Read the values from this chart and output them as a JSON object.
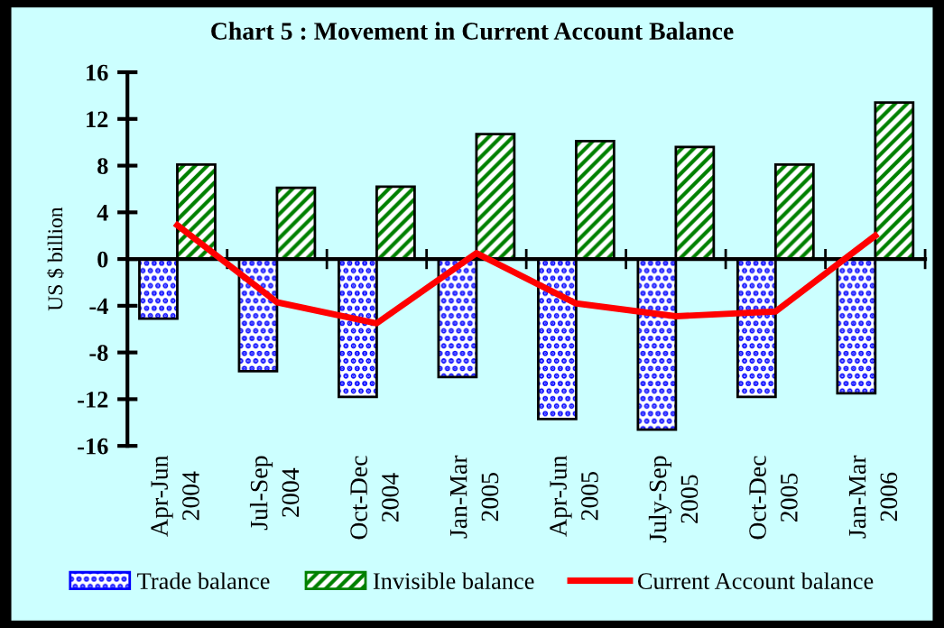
{
  "chart_data": {
    "type": "bar",
    "title": "Chart 5 : Movement in Current Account Balance",
    "ylabel": "US $ billion",
    "categories": [
      "Apr-Jun\n2004",
      "Jul-Sep\n2004",
      "Oct-Dec\n2004",
      "Jan-Mar\n2005",
      "Apr-Jun\n2005",
      "July-Sep\n2005",
      "Oct-Dec\n2005",
      "Jan-Mar\n2006"
    ],
    "series": [
      {
        "name": "Trade balance",
        "color": "#0000ff",
        "values": [
          -5.1,
          -9.6,
          -11.8,
          -10.1,
          -13.7,
          -14.6,
          -11.8,
          -11.5
        ]
      },
      {
        "name": "Invisible balance",
        "color": "#008000",
        "values": [
          8.1,
          6.1,
          6.2,
          10.7,
          10.1,
          9.6,
          8.1,
          13.4
        ]
      },
      {
        "name": "Current Account balance",
        "type": "line",
        "color": "#ff0000",
        "values": [
          2.9,
          -3.7,
          -5.5,
          0.5,
          -3.8,
          -4.9,
          -4.5,
          2.0
        ]
      }
    ],
    "ylim": [
      -16,
      16
    ],
    "yticks": [
      -16,
      -12,
      -8,
      -4,
      0,
      4,
      8,
      12,
      16
    ],
    "legend": "bottom"
  }
}
